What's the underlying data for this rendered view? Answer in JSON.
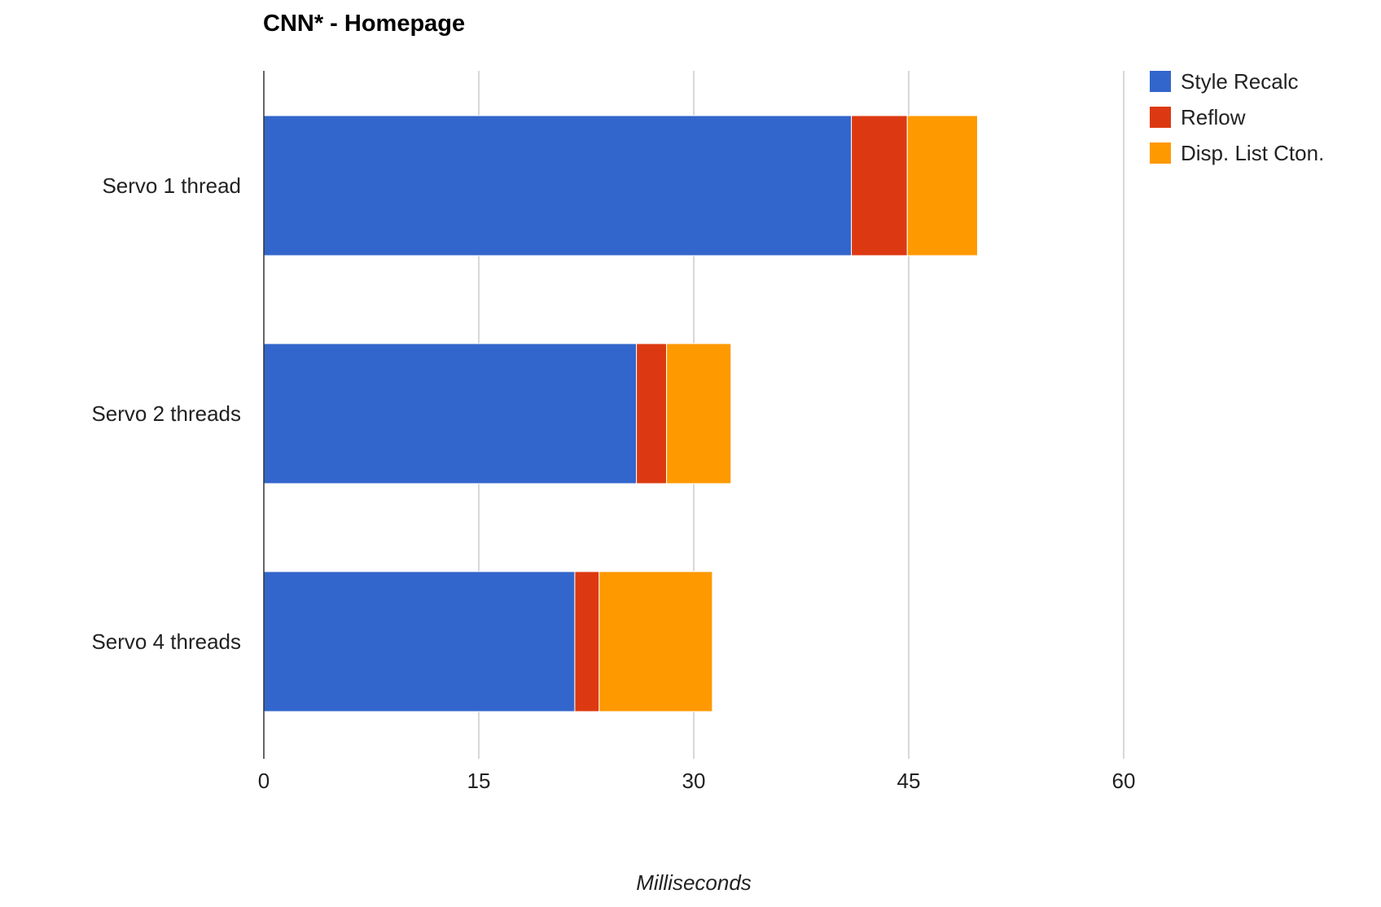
{
  "chart_data": {
    "type": "bar",
    "orientation": "horizontal",
    "stacked": true,
    "title": "CNN* - Homepage",
    "xlabel": "Milliseconds",
    "ylabel": "",
    "categories": [
      "Servo 1 thread",
      "Servo 2 threads",
      "Servo 4 threads"
    ],
    "series": [
      {
        "name": "Style Recalc",
        "color": "#3366cc",
        "values": [
          41.0,
          26.0,
          21.7
        ]
      },
      {
        "name": "Reflow",
        "color": "#dc3912",
        "values": [
          3.9,
          2.1,
          1.7
        ]
      },
      {
        "name": "Disp. List Cton.",
        "color": "#ff9900",
        "values": [
          4.9,
          4.5,
          7.9
        ]
      }
    ],
    "xlim": [
      0,
      75
    ],
    "xticks": [
      0,
      15,
      30,
      45,
      60
    ],
    "grid": true,
    "legend_position": "right"
  }
}
